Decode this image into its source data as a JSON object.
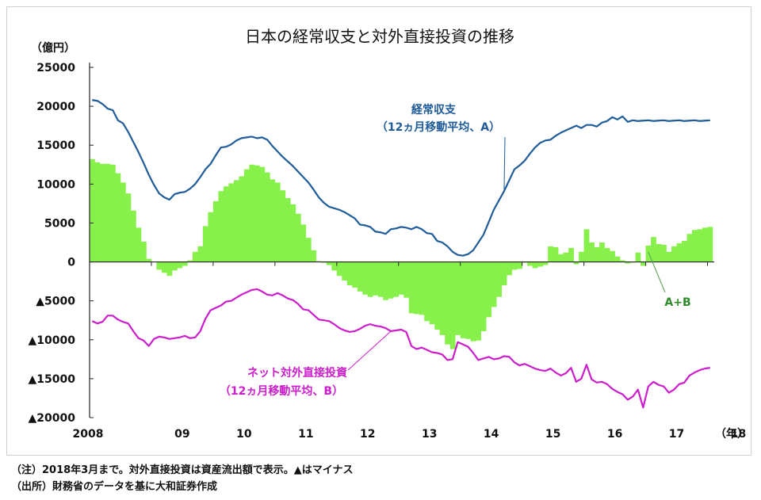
{
  "chart_data": {
    "type": "line+bar",
    "title": "日本の経常収支と対外直接投資の推移",
    "y_unit": "（億円）",
    "x_unit": "（年）",
    "ylim": [
      -20000,
      25000
    ],
    "y_ticks": [
      {
        "value": 25000,
        "label": "25000"
      },
      {
        "value": 20000,
        "label": "20000"
      },
      {
        "value": 15000,
        "label": "15000"
      },
      {
        "value": 10000,
        "label": "10000"
      },
      {
        "value": 5000,
        "label": "5000"
      },
      {
        "value": 0,
        "label": "0"
      },
      {
        "value": -5000,
        "label": "▲5000"
      },
      {
        "value": -10000,
        "label": "▲10000"
      },
      {
        "value": -15000,
        "label": "▲15000"
      },
      {
        "value": -20000,
        "label": "▲20000"
      }
    ],
    "x_ticks": [
      {
        "index": 0,
        "label": "2008"
      },
      {
        "index": 12,
        "label": "09"
      },
      {
        "index": 24,
        "label": "10"
      },
      {
        "index": 36,
        "label": "11"
      },
      {
        "index": 48,
        "label": "12"
      },
      {
        "index": 60,
        "label": "13"
      },
      {
        "index": 72,
        "label": "14"
      },
      {
        "index": 84,
        "label": "15"
      },
      {
        "index": 96,
        "label": "16"
      },
      {
        "index": 108,
        "label": "17"
      },
      {
        "index": 120,
        "label": "18"
      }
    ],
    "series": [
      {
        "name": "経常収支",
        "label_lines": [
          "経常収支",
          "（12ヵ月移動平均、A）"
        ],
        "kind": "line",
        "color": "#1f5c99",
        "values": [
          20800,
          20700,
          20300,
          19700,
          19500,
          18200,
          17800,
          16700,
          15400,
          14100,
          12700,
          11200,
          9900,
          8800,
          8300,
          8000,
          8700,
          8900,
          9000,
          9400,
          10000,
          10900,
          11900,
          12600,
          13700,
          14700,
          14800,
          15100,
          15600,
          15900,
          16000,
          16100,
          15900,
          16000,
          15700,
          14900,
          14200,
          13500,
          12900,
          12300,
          11600,
          10900,
          10200,
          9300,
          8300,
          7600,
          7100,
          6900,
          6700,
          6400,
          6000,
          5600,
          4800,
          4700,
          4500,
          3900,
          3800,
          3600,
          4200,
          4300,
          4500,
          4400,
          4200,
          4500,
          4200,
          3700,
          3600,
          2700,
          2500,
          2000,
          1300,
          900,
          800,
          1000,
          1500,
          2500,
          3500,
          5100,
          6700,
          7900,
          9100,
          10500,
          11900,
          12400,
          13000,
          13900,
          14700,
          15300,
          15600,
          15700,
          16200,
          16600,
          16900,
          17200,
          17500,
          17200,
          17600,
          17600,
          17400,
          17900,
          18100,
          18600,
          18300,
          18700,
          18000,
          18200,
          18100,
          18150,
          18200,
          18100,
          18150,
          18200,
          18100,
          18150,
          18200,
          18100,
          18150,
          18200,
          18100,
          18150,
          18200
        ]
      },
      {
        "name": "ネット対外直接投資",
        "label_lines": [
          "ネット対外直接投資",
          "（12ヵ月移動平均、B）"
        ],
        "kind": "line",
        "color": "#cc1dcc",
        "values": [
          -7600,
          -7900,
          -7700,
          -6900,
          -6900,
          -7400,
          -7700,
          -7900,
          -8900,
          -9800,
          -10100,
          -10800,
          -9900,
          -9600,
          -9700,
          -9900,
          -9800,
          -9700,
          -9500,
          -9800,
          -9700,
          -8900,
          -7300,
          -6200,
          -5900,
          -5600,
          -5100,
          -5000,
          -4600,
          -4200,
          -3900,
          -3600,
          -3500,
          -3800,
          -4200,
          -4300,
          -4000,
          -4300,
          -4700,
          -4900,
          -5400,
          -6100,
          -6200,
          -6800,
          -7400,
          -7500,
          -7600,
          -8000,
          -8500,
          -8800,
          -9000,
          -8900,
          -8600,
          -8200,
          -8000,
          -8200,
          -8300,
          -8500,
          -8900,
          -8800,
          -8700,
          -9000,
          -10800,
          -11200,
          -11000,
          -11300,
          -11600,
          -11700,
          -11900,
          -12600,
          -12500,
          -10300,
          -10600,
          -10900,
          -11700,
          -12600,
          -12400,
          -12200,
          -12500,
          -12400,
          -12100,
          -12200,
          -12900,
          -13300,
          -13100,
          -13400,
          -13700,
          -13900,
          -14000,
          -13700,
          -14200,
          -14600,
          -14300,
          -13600,
          -15400,
          -15000,
          -13200,
          -15100,
          -15500,
          -15400,
          -15700,
          -16300,
          -16700,
          -17000,
          -17700,
          -17300,
          -16400,
          -18700,
          -16000,
          -15400,
          -15800,
          -16000,
          -16800,
          -16400,
          -15700,
          -15500,
          -14600,
          -14200,
          -13900,
          -13700,
          -13600
        ]
      },
      {
        "name": "A+B",
        "label_lines": [
          "A+B"
        ],
        "kind": "bar",
        "color": "#88f04a",
        "values": [
          13200,
          12800,
          12600,
          12600,
          12500,
          11400,
          10200,
          8800,
          6600,
          4400,
          2600,
          400,
          0,
          -1000,
          -1400,
          -1800,
          -1100,
          -800,
          -500,
          200,
          1300,
          2000,
          4600,
          6400,
          7800,
          9100,
          9700,
          10100,
          10500,
          11000,
          11900,
          12500,
          12400,
          12200,
          11500,
          10600,
          10200,
          9200,
          8200,
          7400,
          6200,
          4800,
          3100,
          1500,
          100,
          -100,
          -400,
          -1100,
          -1800,
          -2400,
          -3000,
          -3300,
          -3800,
          -4200,
          -4500,
          -4300,
          -4500,
          -4900,
          -4700,
          -4500,
          -4200,
          -4600,
          -6600,
          -6700,
          -6800,
          -7600,
          -8000,
          -8700,
          -9400,
          -10600,
          -11200,
          -9400,
          -9800,
          -9900,
          -10200,
          -10100,
          -8900,
          -7100,
          -5800,
          -4500,
          -3000,
          -1700,
          -1000,
          -900,
          -100,
          -500,
          -800,
          -600,
          -400,
          2000,
          1900,
          1000,
          1200,
          1800,
          -300,
          1300,
          4200,
          2500,
          1900,
          2500,
          1800,
          1400,
          700,
          200,
          -200,
          -100,
          1200,
          -500,
          2100,
          3200,
          2300,
          2200,
          1300,
          2000,
          2400,
          2700,
          3600,
          4100,
          4200,
          4400,
          4500
        ]
      }
    ],
    "grid": false,
    "legend": "inline-labels"
  },
  "notes": [
    "（注）2018年3月まで。対外直接投資は資産流出額で表示。▲はマイナス",
    "（出所）財務省のデータを基に大和証券作成"
  ]
}
